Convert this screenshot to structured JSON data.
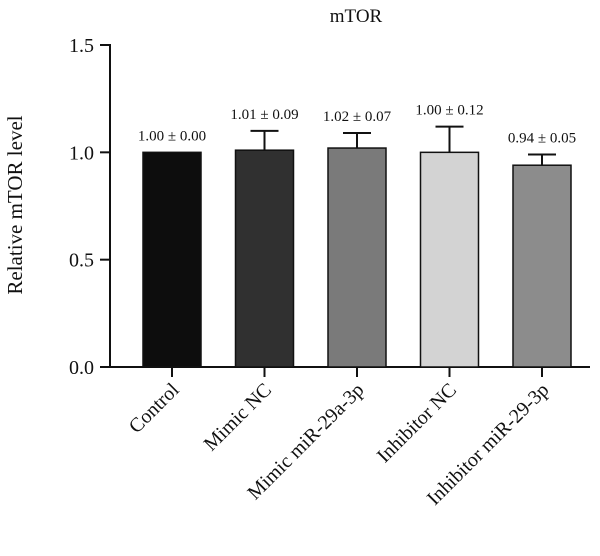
{
  "chart_data": {
    "type": "bar",
    "title": "mTOR",
    "xlabel": "",
    "ylabel": "Relative mTOR level",
    "ylim": [
      0,
      1.5
    ],
    "yticks": [
      "0.0",
      "0.5",
      "1.0",
      "1.5"
    ],
    "categories": [
      "Control",
      "Mimic NC",
      "Mimic miR-29a-3p",
      "Inhibitor NC",
      "Inhibitor miR-29-3p"
    ],
    "values": [
      1.0,
      1.01,
      1.02,
      1.0,
      0.94
    ],
    "errors": [
      0.0,
      0.09,
      0.07,
      0.12,
      0.05
    ],
    "data_labels": [
      "1.00 ± 0.00",
      "1.01 ± 0.09",
      "1.02 ± 0.07",
      "1.00 ± 0.12",
      "0.94 ± 0.05"
    ],
    "bar_colors": [
      "#0d0d0d",
      "#303030",
      "#7a7a7a",
      "#d3d3d3",
      "#8c8c8c"
    ],
    "grid": false,
    "legend": "none"
  }
}
